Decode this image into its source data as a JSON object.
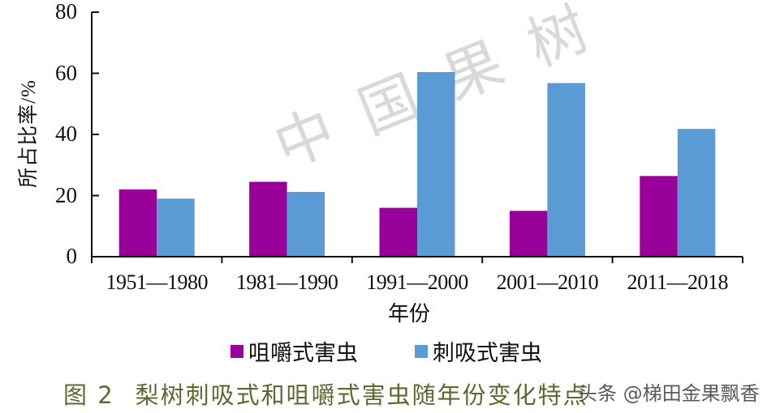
{
  "chart_data": {
    "type": "bar",
    "title": "图 2　梨树刺吸式和咀嚼式害虫随年份变化特点",
    "xlabel": "年份",
    "ylabel": "所占比率/%",
    "ylim": [
      0,
      80
    ],
    "yticks": [
      0,
      20,
      40,
      60,
      80
    ],
    "categories": [
      "1951—1980",
      "1981—1990",
      "1991—2000",
      "2001—2010",
      "2011—2018"
    ],
    "series": [
      {
        "name": "咀嚼式害虫",
        "color": "#990099",
        "values": [
          22,
          24.5,
          16,
          15,
          26.4
        ]
      },
      {
        "name": "刺吸式害虫",
        "color": "#5b9bd5",
        "values": [
          19,
          21.2,
          60.4,
          56.8,
          41.8
        ]
      }
    ],
    "grid": false,
    "legend_position": "bottom"
  },
  "axis": {
    "ytick_labels": [
      "0",
      "20",
      "40",
      "60",
      "80"
    ]
  },
  "legend": {
    "items": [
      {
        "label": "咀嚼式害虫",
        "color": "#990099"
      },
      {
        "label": "刺吸式害虫",
        "color": "#5b9bd5"
      }
    ]
  },
  "caption": {
    "figure_number": "图 2",
    "text": "梨树刺吸式和咀嚼式害虫随年份变化特点"
  },
  "watermarks": {
    "chart_background": "中国果树",
    "overlay": "头条 @梯田金果飘香"
  }
}
